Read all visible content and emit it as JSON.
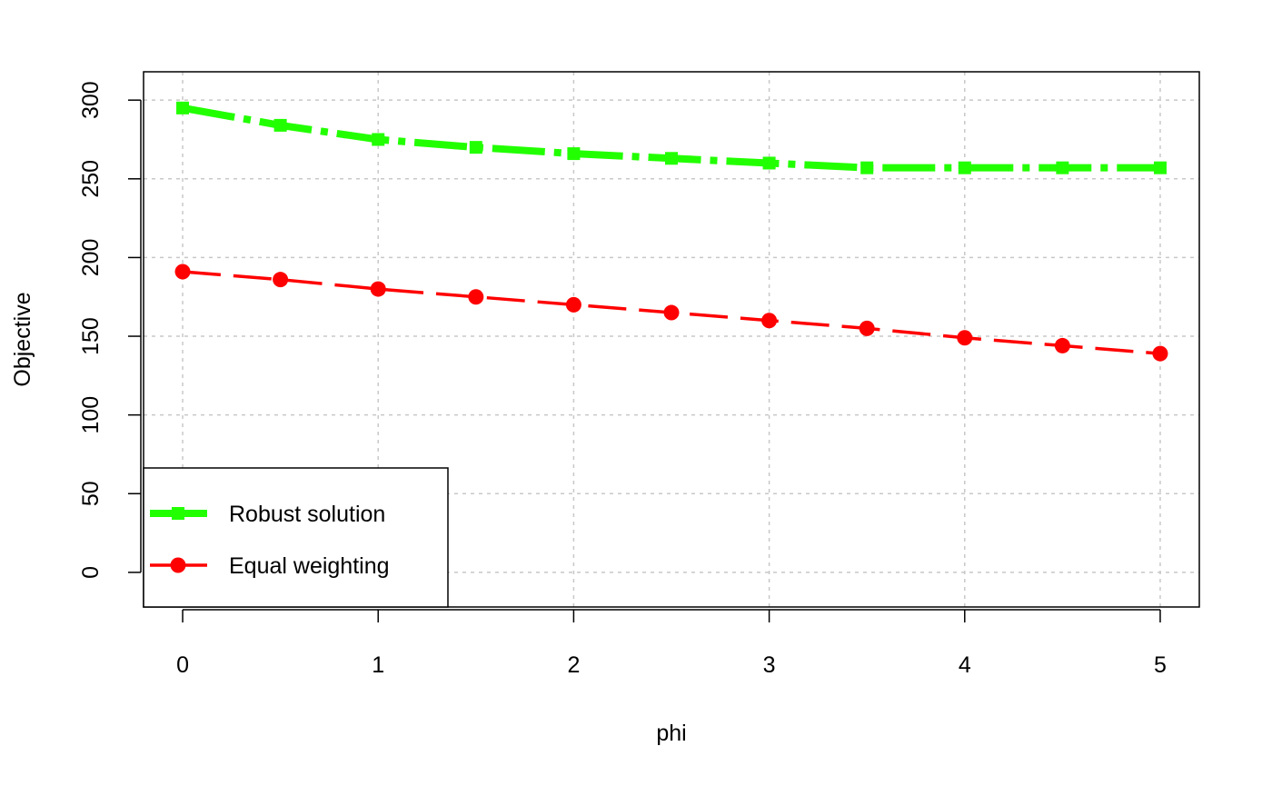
{
  "chart_data": {
    "type": "line",
    "title": "",
    "xlabel": "phi",
    "ylabel": "Objective",
    "xlim": [
      -0.2,
      5.2
    ],
    "ylim": [
      -22,
      318
    ],
    "x_ticks": [
      0,
      1,
      2,
      3,
      4,
      5
    ],
    "y_ticks": [
      0,
      50,
      100,
      150,
      200,
      250,
      300
    ],
    "grid": true,
    "legend_position": "bottom-left",
    "x": [
      0,
      0.5,
      1,
      1.5,
      2,
      2.5,
      3,
      3.5,
      4,
      4.5,
      5
    ],
    "series": [
      {
        "name": "Robust solution",
        "color": "#22ff00",
        "marker": "square",
        "line_style": "dash-dot",
        "values": [
          295,
          284,
          275,
          270,
          266,
          263,
          260,
          257,
          257,
          257,
          257
        ]
      },
      {
        "name": "Equal weighting",
        "color": "#ff0000",
        "marker": "circle",
        "line_style": "dashed",
        "values": [
          191,
          186,
          180,
          175,
          170,
          165,
          160,
          155,
          149,
          144,
          139
        ]
      }
    ]
  }
}
